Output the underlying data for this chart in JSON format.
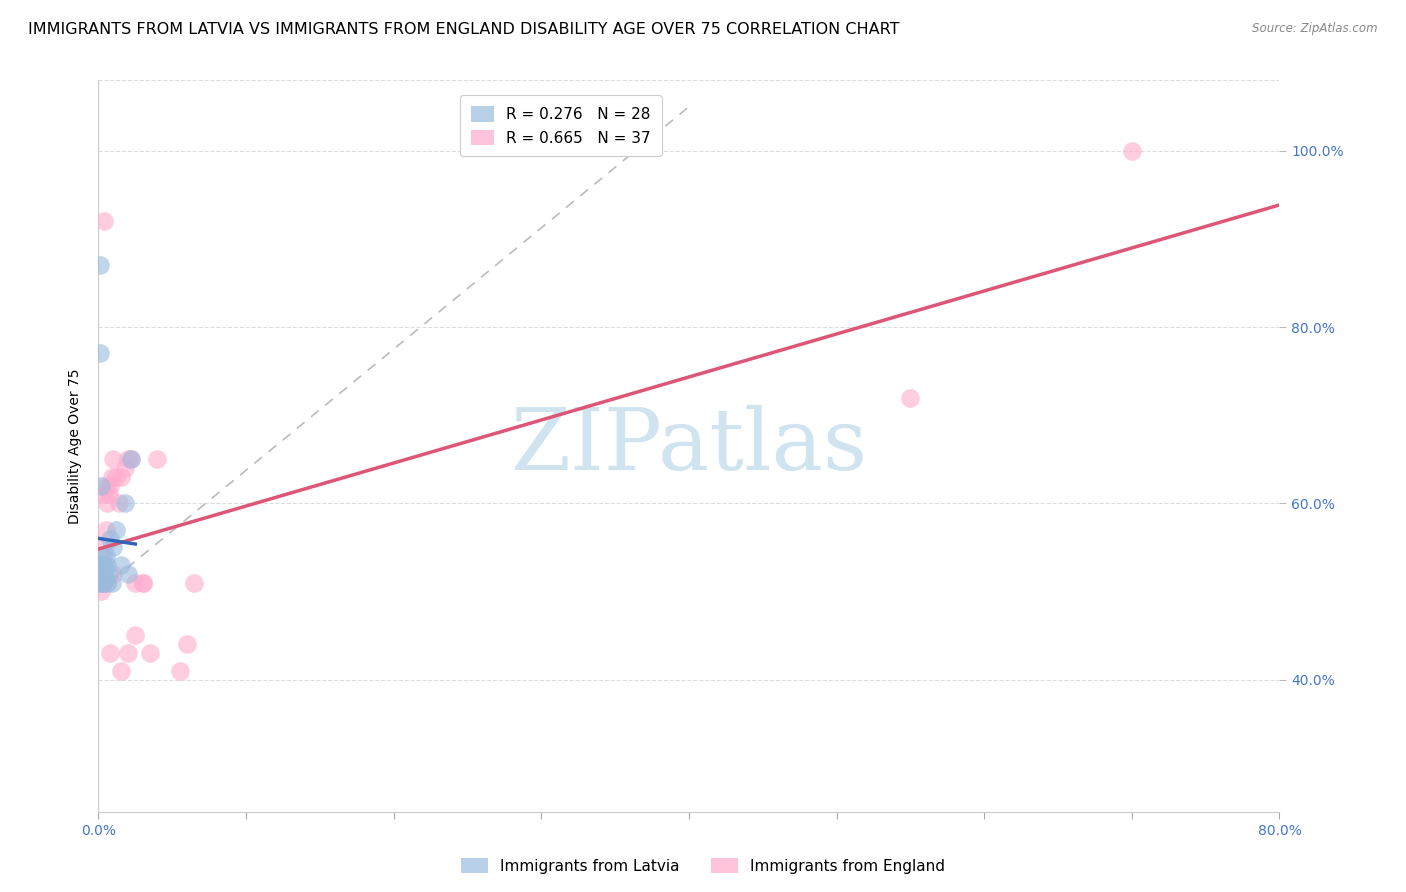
{
  "title": "IMMIGRANTS FROM LATVIA VS IMMIGRANTS FROM ENGLAND DISABILITY AGE OVER 75 CORRELATION CHART",
  "source": "Source: ZipAtlas.com",
  "ylabel": "Disability Age Over 75",
  "legend_labels": [
    "Immigrants from Latvia",
    "Immigrants from England"
  ],
  "r_latvia": 0.276,
  "n_latvia": 28,
  "r_england": 0.665,
  "n_england": 37,
  "xlim": [
    0.0,
    0.8
  ],
  "ylim": [
    0.25,
    1.08
  ],
  "xticks": [
    0.0,
    0.1,
    0.2,
    0.3,
    0.4,
    0.5,
    0.6,
    0.7,
    0.8
  ],
  "xtick_labels": [
    "0.0%",
    "",
    "",
    "",
    "",
    "",
    "",
    "",
    "80.0%"
  ],
  "yticks": [
    0.4,
    0.6,
    0.8,
    1.0
  ],
  "ytick_labels": [
    "40.0%",
    "60.0%",
    "80.0%",
    "100.0%"
  ],
  "latvia_x": [
    0.001,
    0.001,
    0.002,
    0.002,
    0.003,
    0.003,
    0.003,
    0.004,
    0.004,
    0.005,
    0.006,
    0.008,
    0.01,
    0.012,
    0.018,
    0.022,
    0.003,
    0.002,
    0.001,
    0.001,
    0.002,
    0.003,
    0.004,
    0.006,
    0.007,
    0.009,
    0.015,
    0.02
  ],
  "latvia_y": [
    0.87,
    0.77,
    0.62,
    0.53,
    0.53,
    0.52,
    0.51,
    0.52,
    0.53,
    0.54,
    0.53,
    0.56,
    0.55,
    0.57,
    0.6,
    0.65,
    0.51,
    0.52,
    0.51,
    0.52,
    0.53,
    0.54,
    0.52,
    0.51,
    0.52,
    0.51,
    0.53,
    0.52
  ],
  "england_x": [
    0.001,
    0.002,
    0.003,
    0.004,
    0.005,
    0.006,
    0.007,
    0.008,
    0.009,
    0.01,
    0.012,
    0.014,
    0.015,
    0.018,
    0.02,
    0.022,
    0.025,
    0.03,
    0.035,
    0.04,
    0.055,
    0.06,
    0.065,
    0.003,
    0.004,
    0.006,
    0.008,
    0.01,
    0.015,
    0.02,
    0.025,
    0.03,
    0.002,
    0.003,
    0.005,
    0.7,
    0.55
  ],
  "england_y": [
    0.51,
    0.5,
    0.52,
    0.55,
    0.57,
    0.6,
    0.61,
    0.62,
    0.63,
    0.65,
    0.63,
    0.6,
    0.63,
    0.64,
    0.65,
    0.65,
    0.45,
    0.51,
    0.43,
    0.65,
    0.41,
    0.44,
    0.51,
    0.51,
    0.92,
    0.51,
    0.43,
    0.52,
    0.41,
    0.43,
    0.51,
    0.51,
    0.52,
    0.61,
    0.62,
    1.0,
    0.72
  ],
  "blue_scatter_color": "#99BBDD",
  "pink_scatter_color": "#FFAACC",
  "blue_line_color": "#3366BB",
  "pink_line_color": "#DD5577",
  "dash_color": "#CCCCCC",
  "grid_color": "#DDDDDD",
  "right_tick_color": "#4477CC",
  "title_fontsize": 11.5,
  "axis_label_fontsize": 10,
  "tick_fontsize": 10,
  "legend_fontsize": 11,
  "watermark_text": "ZIPatlas",
  "watermark_color": "#D0E4F0",
  "source_text": "Source: ZipAtlas.com"
}
